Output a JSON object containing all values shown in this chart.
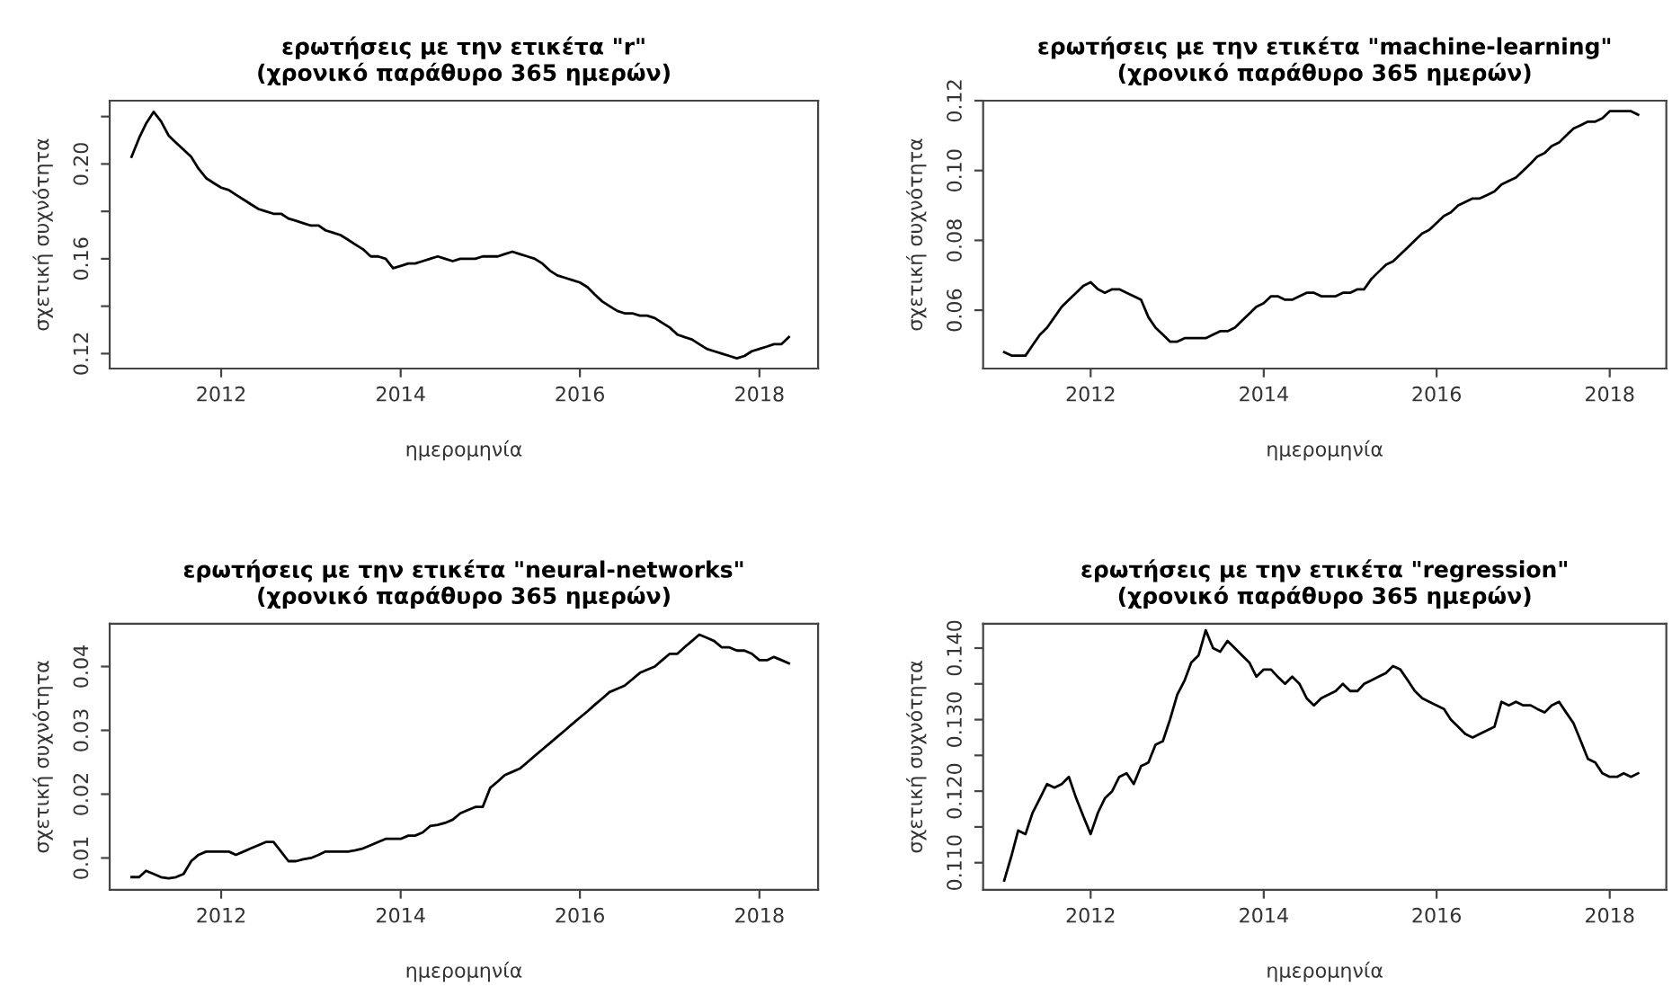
{
  "chart_data": [
    {
      "type": "line",
      "title": "ερωτήσεις με την ετικέτα \"r\"\n(χρονικό παράθυρο 365 ημερών)",
      "xlabel": "ημερομηνία",
      "ylabel": "σχετική συχνότητα",
      "x": [
        "2011-01",
        "2011-02",
        "2011-03",
        "2011-04",
        "2011-05",
        "2011-06",
        "2011-07",
        "2011-08",
        "2011-09",
        "2011-10",
        "2011-11",
        "2011-12",
        "2012-01",
        "2012-02",
        "2012-03",
        "2012-04",
        "2012-05",
        "2012-06",
        "2012-07",
        "2012-08",
        "2012-09",
        "2012-10",
        "2012-11",
        "2012-12",
        "2013-01",
        "2013-02",
        "2013-03",
        "2013-04",
        "2013-05",
        "2013-06",
        "2013-07",
        "2013-08",
        "2013-09",
        "2013-10",
        "2013-11",
        "2013-12",
        "2014-01",
        "2014-02",
        "2014-03",
        "2014-04",
        "2014-05",
        "2014-06",
        "2014-07",
        "2014-08",
        "2014-09",
        "2014-10",
        "2014-11",
        "2014-12",
        "2015-01",
        "2015-02",
        "2015-03",
        "2015-04",
        "2015-05",
        "2015-06",
        "2015-07",
        "2015-08",
        "2015-09",
        "2015-10",
        "2015-11",
        "2015-12",
        "2016-01",
        "2016-02",
        "2016-03",
        "2016-04",
        "2016-05",
        "2016-06",
        "2016-07",
        "2016-08",
        "2016-09",
        "2016-10",
        "2016-11",
        "2016-12",
        "2017-01",
        "2017-02",
        "2017-03",
        "2017-04",
        "2017-05",
        "2017-06",
        "2017-07",
        "2017-08",
        "2017-09",
        "2017-10",
        "2017-11",
        "2017-12",
        "2018-01",
        "2018-02",
        "2018-03",
        "2018-04",
        "2018-05"
      ],
      "series": [
        {
          "color": "#000000",
          "values": [
            0.203,
            0.211,
            0.217,
            0.222,
            0.218,
            0.212,
            0.209,
            0.206,
            0.203,
            0.198,
            0.194,
            0.192,
            0.19,
            0.189,
            0.187,
            0.185,
            0.183,
            0.181,
            0.18,
            0.179,
            0.179,
            0.177,
            0.176,
            0.175,
            0.174,
            0.174,
            0.172,
            0.171,
            0.17,
            0.168,
            0.166,
            0.164,
            0.161,
            0.161,
            0.16,
            0.156,
            0.157,
            0.158,
            0.158,
            0.159,
            0.16,
            0.161,
            0.16,
            0.159,
            0.16,
            0.16,
            0.16,
            0.161,
            0.161,
            0.161,
            0.162,
            0.163,
            0.162,
            0.161,
            0.16,
            0.158,
            0.155,
            0.153,
            0.152,
            0.151,
            0.15,
            0.148,
            0.145,
            0.142,
            0.14,
            0.138,
            0.137,
            0.137,
            0.136,
            0.136,
            0.135,
            0.133,
            0.131,
            0.128,
            0.127,
            0.126,
            0.124,
            0.122,
            0.121,
            0.12,
            0.119,
            0.118,
            0.119,
            0.121,
            0.122,
            0.123,
            0.124,
            0.124,
            0.127
          ]
        }
      ],
      "xlim": [
        "2010-10-04",
        "2018-08-28"
      ],
      "xticks": [
        {
          "value": "2012",
          "label": "2012"
        },
        {
          "value": "2014",
          "label": "2014"
        },
        {
          "value": "2016",
          "label": "2016"
        },
        {
          "value": "2018",
          "label": "2018"
        }
      ],
      "ylim": [
        0.1137,
        0.2267
      ],
      "yticks": [
        0.12,
        {
          "value": 0.14,
          "label": null
        },
        0.16,
        {
          "value": 0.18,
          "label": null
        },
        {
          "value": 0.2,
          "label": "0.20"
        },
        {
          "value": 0.22,
          "label": null
        }
      ],
      "grid": false
    },
    {
      "type": "line",
      "title": "ερωτήσεις με την ετικέτα \"machine-learning\"\n(χρονικό παράθυρο 365 ημερών)",
      "xlabel": "ημερομηνία",
      "ylabel": "σχετική συχνότητα",
      "x": [
        "2011-01",
        "2011-02",
        "2011-03",
        "2011-04",
        "2011-05",
        "2011-06",
        "2011-07",
        "2011-08",
        "2011-09",
        "2011-10",
        "2011-11",
        "2011-12",
        "2012-01",
        "2012-02",
        "2012-03",
        "2012-04",
        "2012-05",
        "2012-06",
        "2012-07",
        "2012-08",
        "2012-09",
        "2012-10",
        "2012-11",
        "2012-12",
        "2013-01",
        "2013-02",
        "2013-03",
        "2013-04",
        "2013-05",
        "2013-06",
        "2013-07",
        "2013-08",
        "2013-09",
        "2013-10",
        "2013-11",
        "2013-12",
        "2014-01",
        "2014-02",
        "2014-03",
        "2014-04",
        "2014-05",
        "2014-06",
        "2014-07",
        "2014-08",
        "2014-09",
        "2014-10",
        "2014-11",
        "2014-12",
        "2015-01",
        "2015-02",
        "2015-03",
        "2015-04",
        "2015-05",
        "2015-06",
        "2015-07",
        "2015-08",
        "2015-09",
        "2015-10",
        "2015-11",
        "2015-12",
        "2016-01",
        "2016-02",
        "2016-03",
        "2016-04",
        "2016-05",
        "2016-06",
        "2016-07",
        "2016-08",
        "2016-09",
        "2016-10",
        "2016-11",
        "2016-12",
        "2017-01",
        "2017-02",
        "2017-03",
        "2017-04",
        "2017-05",
        "2017-06",
        "2017-07",
        "2017-08",
        "2017-09",
        "2017-10",
        "2017-11",
        "2017-12",
        "2018-01",
        "2018-02",
        "2018-03",
        "2018-04",
        "2018-05"
      ],
      "series": [
        {
          "color": "#000000",
          "values": [
            0.048,
            0.047,
            0.047,
            0.047,
            0.05,
            0.053,
            0.055,
            0.058,
            0.061,
            0.063,
            0.065,
            0.067,
            0.068,
            0.066,
            0.065,
            0.066,
            0.066,
            0.065,
            0.064,
            0.063,
            0.058,
            0.055,
            0.053,
            0.051,
            0.051,
            0.052,
            0.052,
            0.052,
            0.052,
            0.053,
            0.054,
            0.054,
            0.055,
            0.057,
            0.059,
            0.061,
            0.062,
            0.064,
            0.064,
            0.063,
            0.063,
            0.064,
            0.065,
            0.065,
            0.064,
            0.064,
            0.064,
            0.065,
            0.065,
            0.066,
            0.066,
            0.069,
            0.071,
            0.073,
            0.074,
            0.076,
            0.078,
            0.08,
            0.082,
            0.083,
            0.085,
            0.087,
            0.088,
            0.09,
            0.091,
            0.092,
            0.092,
            0.093,
            0.094,
            0.096,
            0.097,
            0.098,
            0.1,
            0.102,
            0.104,
            0.105,
            0.107,
            0.108,
            0.11,
            0.112,
            0.113,
            0.114,
            0.114,
            0.115,
            0.117,
            0.117,
            0.117,
            0.117,
            0.116
          ]
        }
      ],
      "xlim": [
        "2010-10-04",
        "2018-08-28"
      ],
      "xticks": [
        {
          "value": "2012",
          "label": "2012"
        },
        {
          "value": "2014",
          "label": "2014"
        },
        {
          "value": "2016",
          "label": "2016"
        },
        {
          "value": "2018",
          "label": "2018"
        }
      ],
      "ylim": [
        0.0433,
        0.12
      ],
      "yticks": [
        0.06,
        0.08,
        {
          "value": 0.1,
          "label": "0.10"
        },
        0.12
      ],
      "grid": false
    },
    {
      "type": "line",
      "title": "ερωτήσεις με την ετικέτα \"neural-networks\"\n(χρονικό παράθυρο 365 ημερών)",
      "xlabel": "ημερομηνία",
      "ylabel": "σχετική συχνότητα",
      "x": [
        "2011-01",
        "2011-02",
        "2011-03",
        "2011-04",
        "2011-05",
        "2011-06",
        "2011-07",
        "2011-08",
        "2011-09",
        "2011-10",
        "2011-11",
        "2011-12",
        "2012-01",
        "2012-02",
        "2012-03",
        "2012-04",
        "2012-05",
        "2012-06",
        "2012-07",
        "2012-08",
        "2012-09",
        "2012-10",
        "2012-11",
        "2012-12",
        "2013-01",
        "2013-02",
        "2013-03",
        "2013-04",
        "2013-05",
        "2013-06",
        "2013-07",
        "2013-08",
        "2013-09",
        "2013-10",
        "2013-11",
        "2013-12",
        "2014-01",
        "2014-02",
        "2014-03",
        "2014-04",
        "2014-05",
        "2014-06",
        "2014-07",
        "2014-08",
        "2014-09",
        "2014-10",
        "2014-11",
        "2014-12",
        "2015-01",
        "2015-02",
        "2015-03",
        "2015-04",
        "2015-05",
        "2015-06",
        "2015-07",
        "2015-08",
        "2015-09",
        "2015-10",
        "2015-11",
        "2015-12",
        "2016-01",
        "2016-02",
        "2016-03",
        "2016-04",
        "2016-05",
        "2016-06",
        "2016-07",
        "2016-08",
        "2016-09",
        "2016-10",
        "2016-11",
        "2016-12",
        "2017-01",
        "2017-02",
        "2017-03",
        "2017-04",
        "2017-05",
        "2017-06",
        "2017-07",
        "2017-08",
        "2017-09",
        "2017-10",
        "2017-11",
        "2017-12",
        "2018-01",
        "2018-02",
        "2018-03",
        "2018-04",
        "2018-05"
      ],
      "series": [
        {
          "color": "#000000",
          "values": [
            0.007,
            0.007,
            0.008,
            0.0075,
            0.007,
            0.0068,
            0.007,
            0.0075,
            0.0095,
            0.0105,
            0.011,
            0.011,
            0.011,
            0.011,
            0.0105,
            0.011,
            0.0115,
            0.012,
            0.0125,
            0.0125,
            0.011,
            0.0095,
            0.0095,
            0.0098,
            0.01,
            0.0105,
            0.011,
            0.011,
            0.011,
            0.011,
            0.0112,
            0.0115,
            0.012,
            0.0125,
            0.013,
            0.013,
            0.013,
            0.0135,
            0.0135,
            0.014,
            0.015,
            0.0152,
            0.0155,
            0.016,
            0.017,
            0.0175,
            0.018,
            0.018,
            0.021,
            0.022,
            0.023,
            0.0235,
            0.024,
            0.025,
            0.026,
            0.027,
            0.028,
            0.029,
            0.03,
            0.031,
            0.032,
            0.033,
            0.034,
            0.035,
            0.036,
            0.0365,
            0.037,
            0.038,
            0.039,
            0.0395,
            0.04,
            0.041,
            0.042,
            0.042,
            0.043,
            0.044,
            0.045,
            0.0445,
            0.044,
            0.043,
            0.043,
            0.0425,
            0.0425,
            0.042,
            0.041,
            0.041,
            0.0415,
            0.041,
            0.0405
          ]
        }
      ],
      "xlim": [
        "2010-10-04",
        "2018-08-28"
      ],
      "xticks": [
        {
          "value": "2012",
          "label": "2012"
        },
        {
          "value": "2014",
          "label": "2014"
        },
        {
          "value": "2016",
          "label": "2016"
        },
        {
          "value": "2018",
          "label": "2018"
        }
      ],
      "ylim": [
        0.005,
        0.0467
      ],
      "yticks": [
        0.01,
        0.02,
        0.03,
        0.04
      ],
      "grid": false
    },
    {
      "type": "line",
      "title": "ερωτήσεις με την ετικέτα \"regression\"\n(χρονικό παράθυρο 365 ημερών)",
      "xlabel": "ημερομηνία",
      "ylabel": "σχετική συχνότητα",
      "x": [
        "2011-01",
        "2011-02",
        "2011-03",
        "2011-04",
        "2011-05",
        "2011-06",
        "2011-07",
        "2011-08",
        "2011-09",
        "2011-10",
        "2011-11",
        "2011-12",
        "2012-01",
        "2012-02",
        "2012-03",
        "2012-04",
        "2012-05",
        "2012-06",
        "2012-07",
        "2012-08",
        "2012-09",
        "2012-10",
        "2012-11",
        "2012-12",
        "2013-01",
        "2013-02",
        "2013-03",
        "2013-04",
        "2013-05",
        "2013-06",
        "2013-07",
        "2013-08",
        "2013-09",
        "2013-10",
        "2013-11",
        "2013-12",
        "2014-01",
        "2014-02",
        "2014-03",
        "2014-04",
        "2014-05",
        "2014-06",
        "2014-07",
        "2014-08",
        "2014-09",
        "2014-10",
        "2014-11",
        "2014-12",
        "2015-01",
        "2015-02",
        "2015-03",
        "2015-04",
        "2015-05",
        "2015-06",
        "2015-07",
        "2015-08",
        "2015-09",
        "2015-10",
        "2015-11",
        "2015-12",
        "2016-01",
        "2016-02",
        "2016-03",
        "2016-04",
        "2016-05",
        "2016-06",
        "2016-07",
        "2016-08",
        "2016-09",
        "2016-10",
        "2016-11",
        "2016-12",
        "2017-01",
        "2017-02",
        "2017-03",
        "2017-04",
        "2017-05",
        "2017-06",
        "2017-07",
        "2017-08",
        "2017-09",
        "2017-10",
        "2017-11",
        "2017-12",
        "2018-01",
        "2018-02",
        "2018-03",
        "2018-04",
        "2018-05"
      ],
      "series": [
        {
          "color": "#000000",
          "values": [
            0.1075,
            0.111,
            0.1145,
            0.114,
            0.117,
            0.119,
            0.121,
            0.1205,
            0.121,
            0.122,
            0.119,
            0.1165,
            0.114,
            0.117,
            0.119,
            0.12,
            0.122,
            0.1225,
            0.121,
            0.1235,
            0.124,
            0.1265,
            0.127,
            0.13,
            0.1335,
            0.1355,
            0.138,
            0.139,
            0.1425,
            0.14,
            0.1395,
            0.141,
            0.14,
            0.139,
            0.138,
            0.136,
            0.137,
            0.137,
            0.136,
            0.135,
            0.136,
            0.135,
            0.133,
            0.132,
            0.133,
            0.1335,
            0.134,
            0.135,
            0.134,
            0.134,
            0.135,
            0.1355,
            0.136,
            0.1365,
            0.1375,
            0.137,
            0.1355,
            0.134,
            0.133,
            0.1325,
            0.132,
            0.1315,
            0.13,
            0.129,
            0.128,
            0.1275,
            0.128,
            0.1285,
            0.129,
            0.1325,
            0.132,
            0.1325,
            0.132,
            0.132,
            0.1315,
            0.131,
            0.132,
            0.1325,
            0.131,
            0.1295,
            0.127,
            0.1245,
            0.124,
            0.1225,
            0.122,
            0.122,
            0.1225,
            0.122,
            0.1225
          ]
        }
      ],
      "xlim": [
        "2010-10-04",
        "2018-08-28"
      ],
      "xticks": [
        {
          "value": "2012",
          "label": "2012"
        },
        {
          "value": "2014",
          "label": "2014"
        },
        {
          "value": "2016",
          "label": "2016"
        },
        {
          "value": "2018",
          "label": "2018"
        }
      ],
      "ylim": [
        0.1062,
        0.1434
      ],
      "yticks": [
        {
          "value": 0.11,
          "label": "0.110"
        },
        {
          "value": 0.115,
          "label": null
        },
        {
          "value": 0.12,
          "label": "0.120"
        },
        {
          "value": 0.125,
          "label": null
        },
        {
          "value": 0.13,
          "label": "0.130"
        },
        {
          "value": 0.135,
          "label": null
        },
        {
          "value": 0.14,
          "label": "0.140"
        }
      ],
      "grid": false
    }
  ]
}
